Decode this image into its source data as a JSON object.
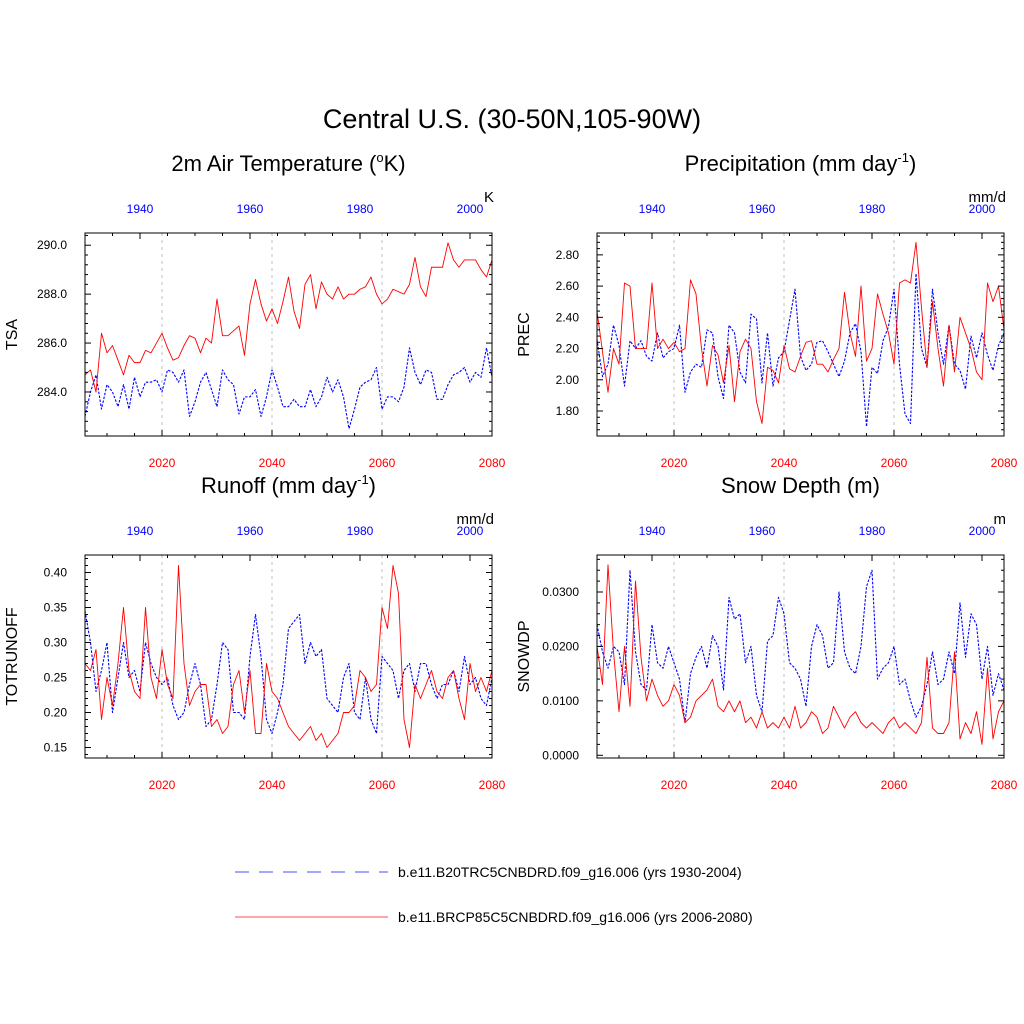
{
  "figure": {
    "title": "Central U.S. (30-50N,105-90W)"
  },
  "legend": [
    {
      "label": "b.e11.B20TRC5CNBDRD.f09_g16.006 (yrs 1930-2004)",
      "color": "#0000ff",
      "style": "dashed"
    },
    {
      "label": "b.e11.BRCP85C5CNBDRD.f09_g16.006 (yrs 2006-2080)",
      "color": "#ff0000",
      "style": "solid"
    }
  ],
  "chart_data": [
    {
      "type": "line",
      "title_main": "2m Air Temperature (",
      "title_sup": "o",
      "title_end": "K)",
      "ylabel": "TSA",
      "unit": "K",
      "ylim": [
        282.2,
        290.5
      ],
      "yticks": [
        284.0,
        286.0,
        288.0,
        290.0
      ],
      "ytick_labels": [
        "284.0",
        "286.0",
        "288.0",
        "290.0"
      ],
      "x_bottom_range": [
        2006,
        2080
      ],
      "x_bottom_ticks": [
        2020,
        2040,
        2060,
        2080
      ],
      "x_top_range": [
        1930,
        2004
      ],
      "x_top_ticks": [
        1940,
        1960,
        1980,
        2000
      ],
      "series": [
        {
          "name": "historical",
          "axis": "top",
          "color": "#0000ff",
          "style": "dashed",
          "x_start": 1930,
          "values": [
            283.0,
            284.0,
            284.7,
            283.3,
            284.3,
            284.0,
            283.4,
            284.3,
            283.3,
            284.6,
            283.8,
            284.4,
            284.4,
            284.5,
            284.0,
            284.9,
            284.8,
            284.4,
            284.9,
            283.0,
            283.6,
            284.4,
            284.8,
            284.1,
            283.4,
            284.9,
            284.5,
            284.3,
            283.1,
            283.8,
            283.8,
            284.1,
            283.0,
            283.8,
            284.9,
            284.2,
            283.4,
            283.4,
            283.7,
            283.4,
            283.4,
            284.1,
            283.4,
            283.8,
            284.6,
            284.0,
            284.5,
            283.8,
            282.5,
            283.3,
            284.2,
            284.4,
            284.5,
            285.0,
            283.3,
            283.8,
            283.8,
            283.6,
            284.2,
            285.8,
            284.8,
            284.3,
            284.9,
            284.8,
            283.7,
            283.7,
            284.3,
            284.7,
            284.8,
            285.0,
            284.4,
            284.8,
            284.6,
            285.8,
            284.6
          ]
        },
        {
          "name": "future",
          "axis": "bottom",
          "color": "#ff0000",
          "style": "solid",
          "x_start": 2006,
          "values": [
            284.7,
            284.9,
            284.0,
            286.4,
            285.6,
            285.9,
            285.3,
            284.7,
            285.5,
            285.2,
            285.2,
            285.7,
            285.6,
            286.0,
            286.4,
            285.8,
            285.3,
            285.4,
            285.9,
            286.3,
            286.2,
            285.6,
            286.2,
            286.0,
            287.8,
            286.3,
            286.3,
            286.5,
            286.7,
            285.5,
            287.6,
            288.6,
            287.6,
            286.9,
            287.4,
            286.8,
            287.7,
            288.7,
            287.3,
            286.6,
            288.4,
            288.8,
            287.4,
            288.5,
            288.0,
            287.8,
            288.3,
            287.8,
            288.0,
            288.0,
            288.2,
            288.3,
            288.7,
            288.0,
            287.6,
            287.8,
            288.2,
            288.1,
            288.0,
            288.4,
            289.5,
            288.3,
            287.9,
            289.1,
            289.1,
            289.1,
            290.1,
            289.4,
            289.1,
            289.4,
            289.4,
            289.4,
            289.0,
            288.7,
            289.4
          ]
        }
      ]
    },
    {
      "type": "line",
      "title_main": "Precipitation (mm day",
      "title_sup": "-1",
      "title_end": ")",
      "ylabel": "PREC",
      "unit": "mm/d",
      "ylim": [
        1.64,
        2.94
      ],
      "yticks": [
        1.8,
        2.0,
        2.2,
        2.4,
        2.6,
        2.8
      ],
      "ytick_labels": [
        "1.80",
        "2.00",
        "2.20",
        "2.40",
        "2.60",
        "2.80"
      ],
      "x_bottom_range": [
        2006,
        2080
      ],
      "x_bottom_ticks": [
        2020,
        2040,
        2060,
        2080
      ],
      "x_top_range": [
        1930,
        2004
      ],
      "x_top_ticks": [
        1940,
        1960,
        1980,
        2000
      ],
      "series": [
        {
          "name": "historical",
          "axis": "top",
          "color": "#0000ff",
          "style": "dashed",
          "x_start": 1930,
          "values": [
            2.26,
            2.02,
            2.1,
            2.35,
            2.22,
            1.96,
            2.25,
            2.2,
            2.25,
            2.15,
            2.12,
            2.3,
            2.14,
            2.18,
            2.2,
            2.35,
            1.92,
            2.05,
            2.1,
            2.08,
            2.32,
            2.3,
            2.02,
            1.88,
            2.35,
            2.3,
            2.05,
            1.98,
            2.42,
            2.39,
            1.98,
            2.3,
            1.96,
            2.14,
            2.18,
            2.38,
            2.58,
            2.15,
            2.06,
            2.1,
            2.24,
            2.25,
            2.18,
            2.1,
            2.02,
            2.12,
            2.3,
            2.36,
            2.18,
            1.7,
            2.08,
            2.04,
            2.25,
            2.34,
            2.58,
            2.1,
            1.78,
            1.72,
            2.68,
            2.2,
            2.08,
            2.58,
            2.3,
            2.1,
            2.35,
            2.1,
            2.06,
            1.94,
            2.28,
            2.14,
            2.3,
            2.16,
            2.06,
            2.22,
            2.3
          ]
        },
        {
          "name": "future",
          "axis": "bottom",
          "color": "#ff0000",
          "style": "solid",
          "x_start": 2006,
          "values": [
            2.44,
            2.18,
            1.92,
            2.2,
            2.1,
            2.62,
            2.6,
            2.2,
            2.2,
            2.2,
            2.62,
            2.2,
            2.26,
            2.2,
            2.24,
            2.18,
            2.2,
            2.64,
            2.55,
            2.2,
            1.96,
            2.22,
            2.16,
            1.98,
            2.22,
            1.86,
            2.18,
            2.26,
            2.2,
            1.86,
            1.72,
            2.08,
            2.06,
            1.98,
            2.22,
            2.07,
            2.05,
            2.15,
            2.24,
            2.25,
            2.1,
            2.1,
            2.05,
            2.13,
            2.2,
            2.56,
            2.3,
            2.15,
            2.6,
            2.12,
            2.2,
            2.55,
            2.42,
            2.3,
            2.1,
            2.62,
            2.64,
            2.62,
            2.88,
            2.46,
            2.08,
            2.5,
            2.2,
            1.96,
            2.35,
            2.05,
            2.4,
            2.3,
            2.2,
            2.05,
            2.0,
            2.62,
            2.5,
            2.6,
            2.32
          ]
        }
      ]
    },
    {
      "type": "line",
      "title_main": "Runoff (mm day",
      "title_sup": "-1",
      "title_end": ")",
      "ylabel": "TOTRUNOFF",
      "unit": "mm/d",
      "ylim": [
        0.135,
        0.425
      ],
      "yticks": [
        0.15,
        0.2,
        0.25,
        0.3,
        0.35,
        0.4
      ],
      "ytick_labels": [
        "0.15",
        "0.20",
        "0.25",
        "0.30",
        "0.35",
        "0.40"
      ],
      "x_bottom_range": [
        2006,
        2080
      ],
      "x_bottom_ticks": [
        2020,
        2040,
        2060,
        2080
      ],
      "x_top_range": [
        1930,
        2004
      ],
      "x_top_ticks": [
        1940,
        1960,
        1980,
        2000
      ],
      "series": [
        {
          "name": "historical",
          "axis": "top",
          "color": "#0000ff",
          "style": "dashed",
          "x_start": 1930,
          "values": [
            0.345,
            0.3,
            0.23,
            0.26,
            0.3,
            0.2,
            0.25,
            0.3,
            0.25,
            0.26,
            0.23,
            0.3,
            0.27,
            0.25,
            0.24,
            0.25,
            0.21,
            0.19,
            0.2,
            0.24,
            0.27,
            0.24,
            0.18,
            0.19,
            0.24,
            0.3,
            0.29,
            0.2,
            0.2,
            0.19,
            0.28,
            0.34,
            0.28,
            0.19,
            0.17,
            0.2,
            0.24,
            0.32,
            0.33,
            0.34,
            0.27,
            0.3,
            0.28,
            0.29,
            0.22,
            0.21,
            0.2,
            0.25,
            0.27,
            0.2,
            0.19,
            0.25,
            0.19,
            0.17,
            0.28,
            0.27,
            0.26,
            0.22,
            0.26,
            0.27,
            0.23,
            0.27,
            0.27,
            0.24,
            0.22,
            0.24,
            0.24,
            0.26,
            0.23,
            0.28,
            0.24,
            0.25,
            0.22,
            0.21,
            0.25
          ]
        },
        {
          "name": "future",
          "axis": "bottom",
          "color": "#ff0000",
          "style": "solid",
          "x_start": 2006,
          "values": [
            0.27,
            0.26,
            0.29,
            0.19,
            0.25,
            0.21,
            0.27,
            0.35,
            0.26,
            0.23,
            0.22,
            0.35,
            0.25,
            0.22,
            0.29,
            0.24,
            0.22,
            0.41,
            0.27,
            0.21,
            0.23,
            0.24,
            0.24,
            0.18,
            0.19,
            0.17,
            0.18,
            0.24,
            0.26,
            0.2,
            0.26,
            0.17,
            0.17,
            0.27,
            0.23,
            0.22,
            0.2,
            0.18,
            0.17,
            0.16,
            0.17,
            0.18,
            0.16,
            0.17,
            0.15,
            0.16,
            0.17,
            0.2,
            0.2,
            0.21,
            0.26,
            0.25,
            0.23,
            0.24,
            0.35,
            0.32,
            0.41,
            0.37,
            0.19,
            0.15,
            0.24,
            0.22,
            0.24,
            0.26,
            0.23,
            0.22,
            0.25,
            0.26,
            0.22,
            0.19,
            0.27,
            0.23,
            0.25,
            0.23,
            0.26
          ]
        }
      ]
    },
    {
      "type": "line",
      "title_main": "Snow Depth (m)",
      "title_sup": "",
      "title_end": "",
      "ylabel": "SNOWDP",
      "unit": "m",
      "ylim": [
        -0.0005,
        0.0368
      ],
      "yticks": [
        0.0,
        0.01,
        0.02,
        0.03
      ],
      "ytick_labels": [
        "0.0000",
        "0.0100",
        "0.0200",
        "0.0300"
      ],
      "x_bottom_range": [
        2006,
        2080
      ],
      "x_bottom_ticks": [
        2020,
        2040,
        2060,
        2080
      ],
      "x_top_range": [
        1930,
        2004
      ],
      "x_top_ticks": [
        1940,
        1960,
        1980,
        2000
      ],
      "series": [
        {
          "name": "historical",
          "axis": "top",
          "color": "#0000ff",
          "style": "dashed",
          "x_start": 1930,
          "values": [
            0.024,
            0.019,
            0.016,
            0.02,
            0.019,
            0.013,
            0.034,
            0.019,
            0.013,
            0.012,
            0.024,
            0.017,
            0.016,
            0.02,
            0.017,
            0.014,
            0.006,
            0.015,
            0.018,
            0.02,
            0.016,
            0.022,
            0.02,
            0.012,
            0.029,
            0.025,
            0.026,
            0.017,
            0.02,
            0.011,
            0.008,
            0.021,
            0.022,
            0.029,
            0.026,
            0.017,
            0.016,
            0.014,
            0.009,
            0.02,
            0.024,
            0.022,
            0.016,
            0.017,
            0.03,
            0.019,
            0.016,
            0.015,
            0.02,
            0.031,
            0.034,
            0.014,
            0.016,
            0.017,
            0.02,
            0.013,
            0.014,
            0.01,
            0.007,
            0.009,
            0.013,
            0.019,
            0.013,
            0.014,
            0.019,
            0.015,
            0.028,
            0.018,
            0.026,
            0.024,
            0.014,
            0.02,
            0.011,
            0.015,
            0.012
          ]
        },
        {
          "name": "future",
          "axis": "bottom",
          "color": "#ff0000",
          "style": "solid",
          "x_start": 2006,
          "values": [
            0.02,
            0.013,
            0.035,
            0.019,
            0.008,
            0.02,
            0.009,
            0.032,
            0.018,
            0.01,
            0.014,
            0.011,
            0.009,
            0.01,
            0.013,
            0.011,
            0.006,
            0.007,
            0.01,
            0.011,
            0.012,
            0.014,
            0.009,
            0.008,
            0.01,
            0.008,
            0.01,
            0.006,
            0.007,
            0.005,
            0.008,
            0.005,
            0.006,
            0.005,
            0.007,
            0.005,
            0.009,
            0.005,
            0.006,
            0.008,
            0.007,
            0.004,
            0.005,
            0.009,
            0.007,
            0.005,
            0.007,
            0.008,
            0.006,
            0.005,
            0.006,
            0.005,
            0.004,
            0.006,
            0.007,
            0.005,
            0.006,
            0.005,
            0.004,
            0.006,
            0.018,
            0.005,
            0.004,
            0.004,
            0.006,
            0.019,
            0.003,
            0.006,
            0.004,
            0.008,
            0.002,
            0.016,
            0.003,
            0.008,
            0.01
          ]
        }
      ]
    }
  ]
}
